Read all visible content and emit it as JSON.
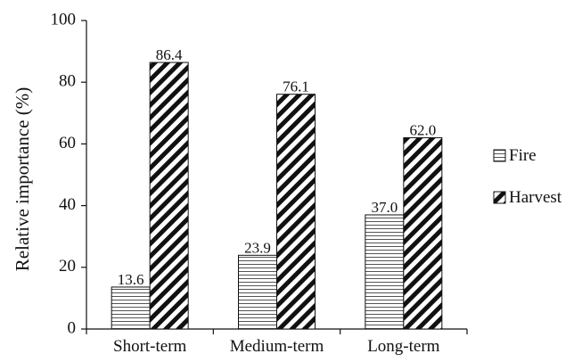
{
  "chart_data": {
    "type": "bar",
    "categories": [
      "Short-term",
      "Medium-term",
      "Long-term"
    ],
    "series": [
      {
        "name": "Fire",
        "values": [
          13.6,
          23.9,
          37.0
        ],
        "labels": [
          "13.6",
          "23.9",
          "37.0"
        ],
        "pattern": "horizontal-lines"
      },
      {
        "name": "Harvest",
        "values": [
          86.4,
          76.1,
          62.0
        ],
        "labels": [
          "86.4",
          "76.1",
          "62.0"
        ],
        "pattern": "diagonal-stripes"
      }
    ],
    "title": "",
    "xlabel": "",
    "ylabel": "Relative importance (%)",
    "ylim": [
      0,
      100
    ],
    "yticks": [
      0,
      20,
      40,
      60,
      80,
      100
    ],
    "grid": false,
    "legend": "right"
  }
}
